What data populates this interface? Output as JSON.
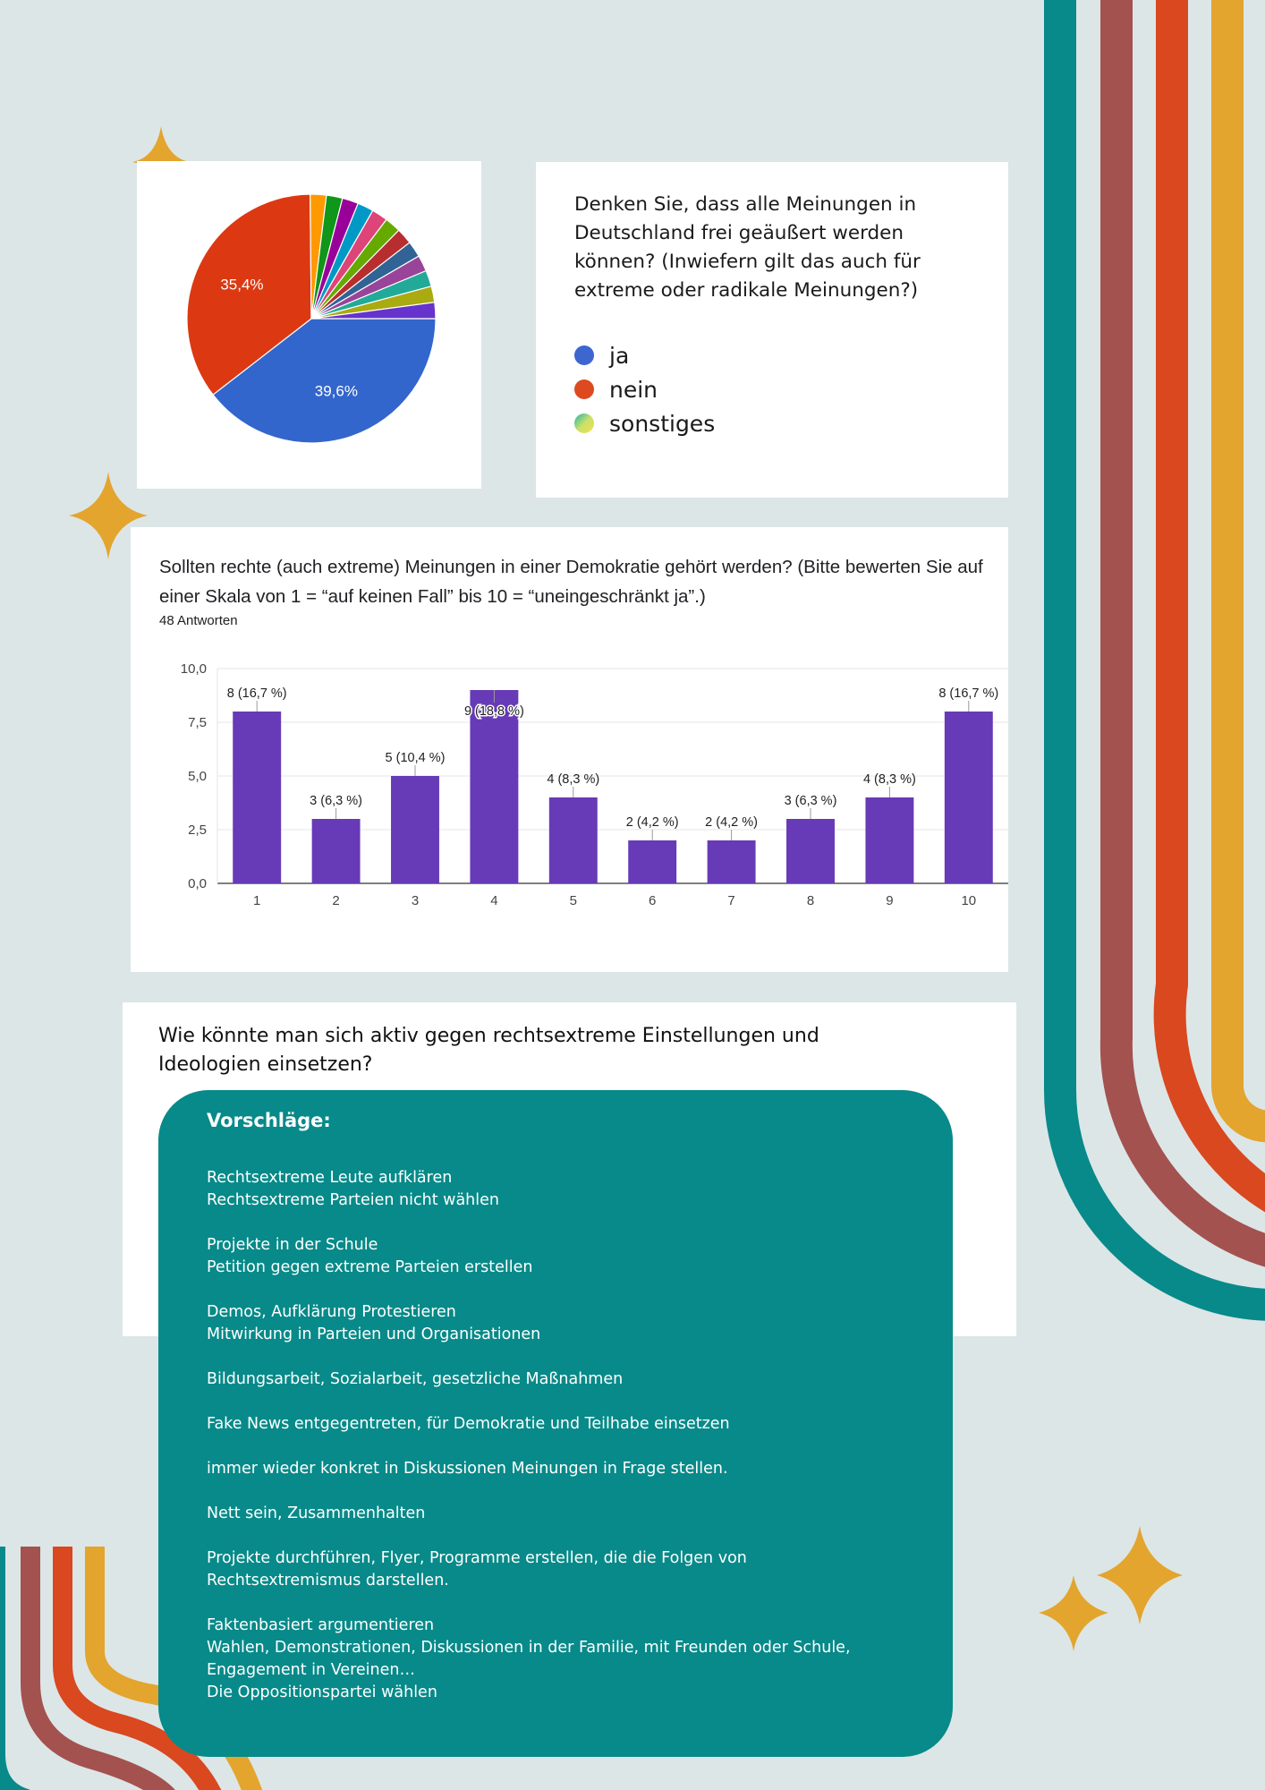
{
  "colors": {
    "background": "#dce6e7",
    "teal": "#078a89",
    "brown": "#a3524f",
    "orange_red": "#d9481f",
    "mustard": "#e3a52d",
    "bar_purple": "#673ab7",
    "pie_blue": "#3366cc",
    "pie_red": "#dc3912"
  },
  "pie": {
    "question": "Denken Sie, dass alle Meinungen in Deutschland frei geäußert werden können? (Inwiefern gilt das auch für extreme oder radikale Meinungen?)",
    "legend": [
      {
        "label": "ja",
        "color": "#3d66cf"
      },
      {
        "label": "nein",
        "color": "#dd4a20"
      },
      {
        "label": "sonstiges",
        "color": "gradient"
      }
    ]
  },
  "bar": {
    "title": "Sollten rechte (auch extreme) Meinungen in einer Demokratie gehört werden? (Bitte bewerten Sie auf einer Skala von 1 = “auf keinen Fall” bis 10 = “uneingeschränkt ja”.)",
    "subtitle": "48 Antworten"
  },
  "chart_data": [
    {
      "type": "pie",
      "slices": [
        {
          "label": "ja",
          "value": 39.6,
          "color": "#3366cc"
        },
        {
          "label": "nein",
          "value": 35.4,
          "color": "#dc3912"
        },
        {
          "label": "sonstiges",
          "value": 2.1,
          "color": "#ff9900"
        },
        {
          "label": "sonstiges",
          "value": 2.1,
          "color": "#109618"
        },
        {
          "label": "sonstiges",
          "value": 2.1,
          "color": "#990099"
        },
        {
          "label": "sonstiges",
          "value": 2.1,
          "color": "#0099c6"
        },
        {
          "label": "sonstiges",
          "value": 2.1,
          "color": "#dd4477"
        },
        {
          "label": "sonstiges",
          "value": 2.1,
          "color": "#66aa00"
        },
        {
          "label": "sonstiges",
          "value": 2.1,
          "color": "#b82e2e"
        },
        {
          "label": "sonstiges",
          "value": 2.1,
          "color": "#316395"
        },
        {
          "label": "sonstiges",
          "value": 2.1,
          "color": "#994499"
        },
        {
          "label": "sonstiges",
          "value": 2.1,
          "color": "#22aa99"
        },
        {
          "label": "sonstiges",
          "value": 2.1,
          "color": "#aaaa11"
        },
        {
          "label": "sonstiges",
          "value": 2.1,
          "color": "#6633cc"
        }
      ],
      "data_labels": [
        "39,6%",
        "35,4%"
      ]
    },
    {
      "type": "bar",
      "categories": [
        "1",
        "2",
        "3",
        "4",
        "5",
        "6",
        "7",
        "8",
        "9",
        "10"
      ],
      "values": [
        8,
        3,
        5,
        9,
        4,
        2,
        2,
        3,
        4,
        8
      ],
      "data_labels": [
        "8 (16,7 %)",
        "3 (6,3 %)",
        "5 (10,4 %)",
        "9 (18,8 %)",
        "4 (8,3 %)",
        "2 (4,2 %)",
        "2 (4,2 %)",
        "3 (6,3 %)",
        "4 (8,3 %)",
        "8 (16,7 %)"
      ],
      "y_ticks": [
        "0,0",
        "2,5",
        "5,0",
        "7,5",
        "10,0"
      ],
      "ylim": [
        0,
        10
      ],
      "grid": true
    }
  ],
  "question3": "Wie könnte man sich aktiv gegen rechtsextreme Einstellungen und Ideologien einsetzen?",
  "suggestions": {
    "title": "Vorschläge:",
    "groups": [
      [
        "Rechtsextreme Leute aufklären",
        "Rechtsextreme Parteien nicht wählen"
      ],
      [
        "Projekte in der Schule",
        "Petition gegen extreme Parteien erstellen"
      ],
      [
        "Demos, Aufklärung Protestieren",
        "Mitwirkung in Parteien und Organisationen"
      ],
      [
        "Bildungsarbeit, Sozialarbeit, gesetzliche Maßnahmen"
      ],
      [
        "Fake News entgegentreten, für Demokratie und Teilhabe einsetzen"
      ],
      [
        "immer wieder konkret in Diskussionen Meinungen in Frage stellen."
      ],
      [
        "Nett sein, Zusammenhalten"
      ],
      [
        "Projekte durchführen, Flyer, Programme erstellen, die die Folgen von",
        "Rechtsextremismus darstellen."
      ],
      [
        "Faktenbasiert argumentieren",
        "Wahlen, Demonstrationen, Diskussionen in der Familie, mit Freunden oder Schule,",
        "Engagement in Vereinen…",
        "Die Oppositionspartei wählen"
      ]
    ]
  }
}
